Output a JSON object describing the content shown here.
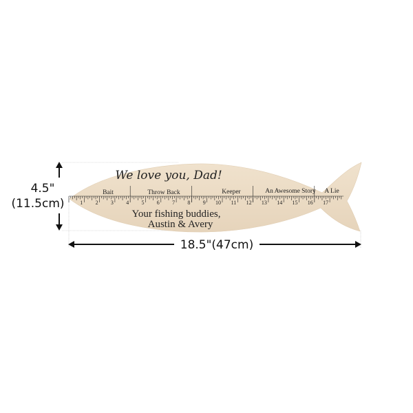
{
  "dimensions": {
    "height_label_line1": "4.5\"",
    "height_label_line2": "(11.5cm)",
    "width_label": "18.5\"(47cm)"
  },
  "sign": {
    "heading": "We love you, Dad!",
    "sections": [
      "Bait",
      "Throw Back",
      "Keeper",
      "An Awesome Story",
      "A Lie"
    ],
    "inch_marks": [
      1,
      2,
      3,
      4,
      5,
      6,
      7,
      8,
      9,
      10,
      11,
      12,
      13,
      14,
      15,
      16,
      17
    ],
    "message_line1": "Your fishing buddies,",
    "message_line2": "Austin & Avery"
  },
  "colors": {
    "wood": "#ecdcc6",
    "ink": "#222222"
  }
}
